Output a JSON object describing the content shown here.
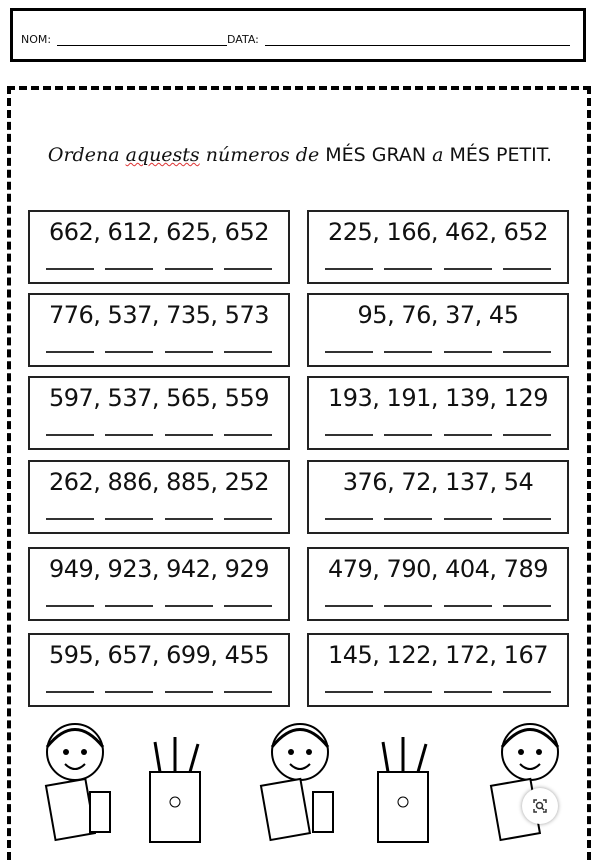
{
  "header": {
    "name_label": "NOM:",
    "date_label": "DATA:"
  },
  "instruction": {
    "part1": "Ordena",
    "part2": "aquests",
    "part3": "números de",
    "part4": "MÉS GRAN",
    "part5": "a",
    "part6": "MÉS PETIT."
  },
  "exercises": [
    {
      "numbers": "662, 612, 625, 652"
    },
    {
      "numbers": "225, 166, 462, 652"
    },
    {
      "numbers": "776, 537, 735, 573"
    },
    {
      "numbers": "95, 76, 37, 45"
    },
    {
      "numbers": "597, 537, 565, 559"
    },
    {
      "numbers": "193, 191, 139, 129"
    },
    {
      "numbers": "262, 886, 885, 252"
    },
    {
      "numbers": "376, 72, 137, 54"
    },
    {
      "numbers": "949, 923, 942, 929"
    },
    {
      "numbers": "479, 790, 404, 789"
    },
    {
      "numbers": "595, 657, 699, 455"
    },
    {
      "numbers": "145, 122, 172, 167"
    }
  ],
  "decorations": [
    "girl-with-notebook",
    "pencil-cup",
    "girl-with-notebook",
    "pencil-cup",
    "girl-with-notebook"
  ],
  "icons": {
    "zoom": "zoom-lens-icon"
  }
}
